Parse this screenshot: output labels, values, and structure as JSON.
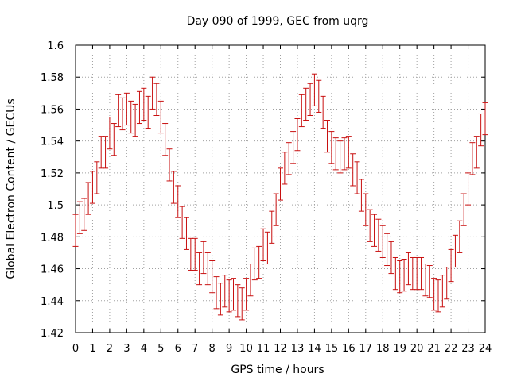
{
  "chart_data": {
    "type": "scatter",
    "title": "Day 090 of 1999, GEC from uqrg",
    "xlabel": "GPS time / hours",
    "ylabel": "Global Electron Content / GECUs",
    "xlim": [
      0,
      24
    ],
    "ylim": [
      1.42,
      1.6
    ],
    "xticks": [
      0,
      1,
      2,
      3,
      4,
      5,
      6,
      7,
      8,
      9,
      10,
      11,
      12,
      13,
      14,
      15,
      16,
      17,
      18,
      19,
      20,
      21,
      22,
      23,
      24
    ],
    "yticks": [
      1.42,
      1.44,
      1.46,
      1.48,
      1.5,
      1.52,
      1.54,
      1.56,
      1.58,
      1.6
    ],
    "ytick_labels": [
      "1.42",
      "1.44",
      "1.46",
      "1.48",
      "1.5",
      "1.52",
      "1.54",
      "1.56",
      "1.58",
      "1.6"
    ],
    "grid": true,
    "error": 0.01,
    "series": [
      {
        "name": "GEC",
        "color": "#c81010",
        "x": [
          0,
          0.25,
          0.5,
          0.75,
          1,
          1.25,
          1.5,
          1.75,
          2,
          2.25,
          2.5,
          2.75,
          3,
          3.25,
          3.5,
          3.75,
          4,
          4.25,
          4.5,
          4.75,
          5,
          5.25,
          5.5,
          5.75,
          6,
          6.25,
          6.5,
          6.75,
          7,
          7.25,
          7.5,
          7.75,
          8,
          8.25,
          8.5,
          8.75,
          9,
          9.25,
          9.5,
          9.75,
          10,
          10.25,
          10.5,
          10.75,
          11,
          11.25,
          11.5,
          11.75,
          12,
          12.25,
          12.5,
          12.75,
          13,
          13.25,
          13.5,
          13.75,
          14,
          14.25,
          14.5,
          14.75,
          15,
          15.25,
          15.5,
          15.75,
          16,
          16.25,
          16.5,
          16.75,
          17,
          17.25,
          17.5,
          17.75,
          18,
          18.25,
          18.5,
          18.75,
          19,
          19.25,
          19.5,
          19.75,
          20,
          20.25,
          20.5,
          20.75,
          21,
          21.25,
          21.5,
          21.75,
          22,
          22.25,
          22.5,
          22.75,
          23,
          23.25,
          23.5,
          23.75,
          24
        ],
        "y": [
          1.484,
          1.492,
          1.494,
          1.504,
          1.511,
          1.517,
          1.533,
          1.533,
          1.545,
          1.541,
          1.559,
          1.557,
          1.56,
          1.555,
          1.553,
          1.561,
          1.563,
          1.558,
          1.57,
          1.566,
          1.555,
          1.541,
          1.525,
          1.511,
          1.502,
          1.489,
          1.482,
          1.469,
          1.469,
          1.46,
          1.467,
          1.46,
          1.455,
          1.445,
          1.441,
          1.446,
          1.443,
          1.444,
          1.44,
          1.438,
          1.444,
          1.453,
          1.463,
          1.464,
          1.475,
          1.473,
          1.486,
          1.497,
          1.513,
          1.523,
          1.529,
          1.536,
          1.544,
          1.559,
          1.563,
          1.566,
          1.572,
          1.568,
          1.558,
          1.543,
          1.536,
          1.532,
          1.53,
          1.532,
          1.533,
          1.522,
          1.517,
          1.506,
          1.497,
          1.487,
          1.484,
          1.481,
          1.477,
          1.472,
          1.467,
          1.457,
          1.455,
          1.456,
          1.46,
          1.457,
          1.457,
          1.457,
          1.453,
          1.452,
          1.444,
          1.443,
          1.446,
          1.451,
          1.462,
          1.471,
          1.48,
          1.497,
          1.51,
          1.529,
          1.533,
          1.547,
          1.554
        ]
      }
    ]
  }
}
